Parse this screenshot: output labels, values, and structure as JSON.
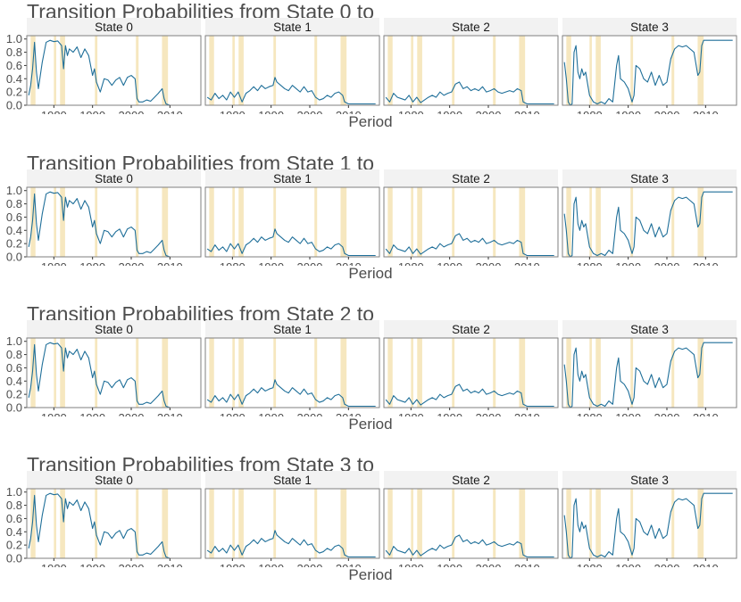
{
  "chart_data": {
    "type": "line",
    "title_prefix": "Transition Probabilities from ",
    "title_suffix": " to",
    "from_states": [
      "State 0",
      "State 1",
      "State 2",
      "State 3"
    ],
    "to_states": [
      "State 0",
      "State 1",
      "State 2",
      "State 3"
    ],
    "xlabel": "Period",
    "xlim": [
      1973,
      2018
    ],
    "ylim": [
      0,
      1.05
    ],
    "xticks": [
      1980,
      1990,
      2000,
      2010
    ],
    "yticks": [
      0.0,
      0.2,
      0.4,
      0.6,
      0.8,
      1.0
    ],
    "ytick_labels": [
      "0.0",
      "0.2",
      "0.4",
      "0.6",
      "0.8",
      "1.0"
    ],
    "grid": false,
    "recession_shading": [
      [
        1974.0,
        1975.25
      ],
      [
        1980.0,
        1980.6
      ],
      [
        1981.6,
        1982.9
      ],
      [
        1990.6,
        1991.25
      ],
      [
        2001.2,
        2001.9
      ],
      [
        2007.95,
        2009.5
      ]
    ],
    "colors": {
      "line": "#1f6f99",
      "recession": "#f6e7bf",
      "strip": "#f2f2f2",
      "panel_border": "#7f7f7f",
      "text": "#4d4d4d"
    },
    "series": {
      "to_state_0": {
        "x": [
          1973.5,
          1974.0,
          1974.5,
          1975.0,
          1975.5,
          1976.0,
          1977.0,
          1978.0,
          1979.0,
          1980.0,
          1981.0,
          1982.0,
          1982.5,
          1983.0,
          1983.5,
          1984.0,
          1985.0,
          1986.0,
          1987.0,
          1988.0,
          1989.0,
          1990.0,
          1990.5,
          1991.0,
          1992.0,
          1993.0,
          1994.0,
          1995.0,
          1996.0,
          1997.0,
          1998.0,
          1999.0,
          2000.0,
          2001.0,
          2001.5,
          2002.0,
          2003.0,
          2004.0,
          2005.0,
          2006.0,
          2007.0,
          2008.0,
          2008.5,
          2009.0,
          2010.0,
          2012.0,
          2015.0,
          2017.0
        ],
        "y": [
          0.15,
          0.3,
          0.55,
          0.95,
          0.5,
          0.25,
          0.65,
          0.95,
          0.98,
          0.96,
          0.97,
          0.9,
          0.55,
          0.9,
          0.75,
          0.85,
          0.8,
          0.88,
          0.72,
          0.85,
          0.75,
          0.45,
          0.55,
          0.35,
          0.2,
          0.4,
          0.38,
          0.3,
          0.38,
          0.42,
          0.3,
          0.42,
          0.45,
          0.4,
          0.1,
          0.05,
          0.05,
          0.08,
          0.06,
          0.12,
          0.18,
          0.25,
          0.1,
          0.02,
          0.0,
          0.0,
          0.0,
          0.0
        ]
      },
      "to_state_1": {
        "x": [
          1973.5,
          1974.5,
          1975.5,
          1976.5,
          1977.5,
          1978.5,
          1979.5,
          1980.5,
          1981.5,
          1982.5,
          1983.5,
          1984.5,
          1985.5,
          1986.5,
          1987.5,
          1988.5,
          1989.5,
          1990.5,
          1991.0,
          1991.5,
          1992.5,
          1993.5,
          1994.5,
          1995.5,
          1996.5,
          1997.5,
          1998.5,
          1999.5,
          2000.5,
          2001.5,
          2002.5,
          2003.5,
          2004.5,
          2005.5,
          2006.5,
          2007.5,
          2008.5,
          2009.0,
          2010.0,
          2012.0,
          2015.0,
          2017.0
        ],
        "y": [
          0.12,
          0.08,
          0.18,
          0.1,
          0.15,
          0.08,
          0.2,
          0.12,
          0.2,
          0.05,
          0.18,
          0.22,
          0.28,
          0.22,
          0.3,
          0.25,
          0.28,
          0.3,
          0.42,
          0.35,
          0.3,
          0.25,
          0.22,
          0.3,
          0.25,
          0.2,
          0.28,
          0.2,
          0.22,
          0.12,
          0.08,
          0.1,
          0.15,
          0.12,
          0.18,
          0.2,
          0.15,
          0.05,
          0.02,
          0.02,
          0.02,
          0.02
        ]
      },
      "to_state_2": {
        "x": [
          1973.5,
          1974.5,
          1975.5,
          1976.5,
          1977.5,
          1978.5,
          1979.5,
          1980.5,
          1981.5,
          1982.5,
          1983.5,
          1984.5,
          1985.5,
          1986.5,
          1987.5,
          1988.5,
          1989.5,
          1990.5,
          1991.5,
          1992.5,
          1993.5,
          1994.5,
          1995.5,
          1996.5,
          1997.5,
          1998.5,
          1999.5,
          2000.5,
          2001.5,
          2002.5,
          2003.5,
          2004.5,
          2005.5,
          2006.5,
          2007.5,
          2008.5,
          2009.0,
          2010.0,
          2012.0,
          2015.0,
          2017.0
        ],
        "y": [
          0.12,
          0.05,
          0.18,
          0.12,
          0.1,
          0.08,
          0.15,
          0.05,
          0.12,
          0.04,
          0.08,
          0.12,
          0.15,
          0.12,
          0.2,
          0.15,
          0.18,
          0.2,
          0.32,
          0.35,
          0.25,
          0.28,
          0.22,
          0.25,
          0.22,
          0.28,
          0.2,
          0.22,
          0.25,
          0.2,
          0.18,
          0.2,
          0.22,
          0.2,
          0.25,
          0.22,
          0.05,
          0.02,
          0.02,
          0.02,
          0.02
        ]
      },
      "to_state_3": {
        "x": [
          1973.5,
          1974.0,
          1974.5,
          1975.0,
          1975.5,
          1976.0,
          1976.5,
          1977.0,
          1977.5,
          1978.0,
          1978.5,
          1979.0,
          1980.0,
          1981.0,
          1982.0,
          1983.0,
          1984.0,
          1985.0,
          1986.0,
          1987.0,
          1987.5,
          1988.0,
          1989.0,
          1990.0,
          1991.0,
          1991.5,
          1992.0,
          1993.0,
          1994.0,
          1995.0,
          1996.0,
          1997.0,
          1998.0,
          1999.0,
          2000.0,
          2001.0,
          2002.0,
          2003.0,
          2004.0,
          2005.0,
          2006.0,
          2007.0,
          2008.0,
          2008.5,
          2009.0,
          2009.5,
          2010.0,
          2012.0,
          2015.0,
          2017.0
        ],
        "y": [
          0.65,
          0.4,
          0.05,
          0.0,
          0.02,
          0.8,
          0.9,
          0.5,
          0.4,
          0.55,
          0.45,
          0.5,
          0.15,
          0.05,
          0.02,
          0.05,
          0.02,
          0.1,
          0.05,
          0.6,
          0.75,
          0.4,
          0.35,
          0.25,
          0.05,
          0.15,
          0.6,
          0.55,
          0.4,
          0.35,
          0.5,
          0.3,
          0.45,
          0.3,
          0.35,
          0.7,
          0.85,
          0.9,
          0.88,
          0.9,
          0.85,
          0.8,
          0.45,
          0.5,
          0.9,
          0.98,
          0.98,
          0.98,
          0.98,
          0.98
        ]
      }
    }
  }
}
